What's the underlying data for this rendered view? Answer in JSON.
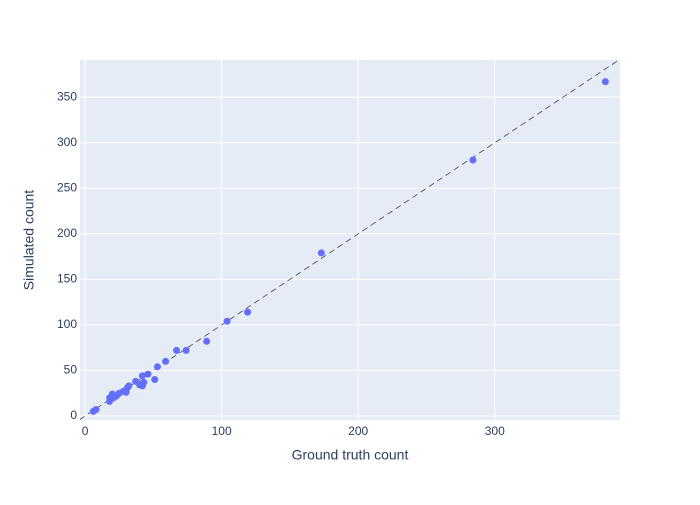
{
  "chart_data": {
    "type": "scatter",
    "xlabel": "Ground truth count",
    "ylabel": "Simulated count",
    "series": [
      {
        "color": "#636efa",
        "x": [
          6,
          8,
          18,
          18,
          20,
          21,
          23,
          25,
          28,
          30,
          31,
          32,
          37,
          40,
          41,
          42,
          43,
          42,
          46,
          51,
          53,
          59,
          67,
          74,
          89,
          104,
          119,
          173,
          284,
          381
        ],
        "values": [
          5,
          7,
          16,
          20,
          24,
          20,
          22,
          25,
          27,
          26,
          31,
          33,
          38,
          34,
          35,
          33,
          37,
          44,
          46,
          40,
          54,
          60,
          72,
          72,
          82,
          104,
          114,
          179,
          281,
          367
        ]
      }
    ],
    "reference_line": {
      "color": "#444444",
      "dash": "dash",
      "x": [
        -4,
        392
      ],
      "y": [
        -4,
        392
      ]
    },
    "xlim": [
      -3.7,
      391.7
    ],
    "ylim": [
      -4.4,
      390.8
    ],
    "xticks": [
      0,
      100,
      200,
      300
    ],
    "yticks": [
      0,
      50,
      100,
      150,
      200,
      250,
      300,
      350
    ],
    "grid": true,
    "background": "#e5ecf6"
  }
}
